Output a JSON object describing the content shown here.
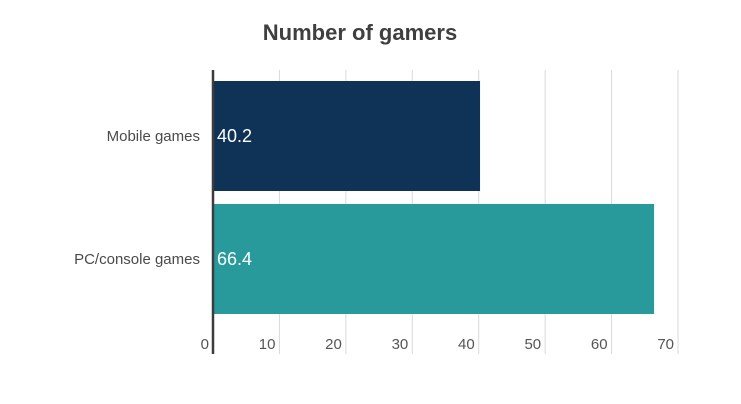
{
  "chart_data": {
    "type": "bar",
    "orientation": "horizontal",
    "title": "Number of gamers",
    "categories": [
      "Mobile games",
      "PC/console games"
    ],
    "values": [
      40.2,
      66.4
    ],
    "bar_colors": [
      "#0f3356",
      "#289a9b"
    ],
    "data_labels": [
      "40.2",
      "66.4"
    ],
    "xlim": [
      0,
      70
    ],
    "x_ticks": [
      "0",
      "10",
      "20",
      "30",
      "40",
      "50",
      "60",
      "70"
    ],
    "grid": true,
    "xlabel": "",
    "ylabel": ""
  }
}
